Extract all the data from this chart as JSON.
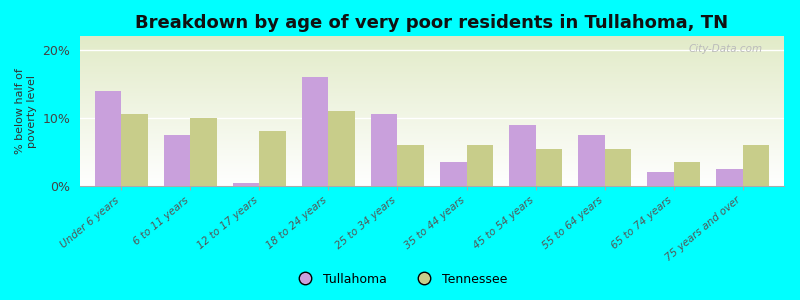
{
  "title": "Breakdown by age of very poor residents in Tullahoma, TN",
  "categories": [
    "Under 6 years",
    "6 to 11 years",
    "12 to 17 years",
    "18 to 24 years",
    "25 to 34 years",
    "35 to 44 years",
    "45 to 54 years",
    "55 to 64 years",
    "65 to 74 years",
    "75 years and over"
  ],
  "tullahoma": [
    14.0,
    7.5,
    0.5,
    16.0,
    10.5,
    3.5,
    9.0,
    7.5,
    2.0,
    2.5
  ],
  "tennessee": [
    10.5,
    10.0,
    8.0,
    11.0,
    6.0,
    6.0,
    5.5,
    5.5,
    3.5,
    6.0
  ],
  "tullahoma_color": "#c9a0dc",
  "tennessee_color": "#c8cd8a",
  "background_color": "#00ffff",
  "ylabel": "% below half of\npoverty level",
  "ylim": [
    0,
    22
  ],
  "yticks": [
    0,
    10,
    20
  ],
  "ytick_labels": [
    "0%",
    "10%",
    "20%"
  ],
  "bar_width": 0.38,
  "title_fontsize": 13,
  "legend_labels": [
    "Tullahoma",
    "Tennessee"
  ],
  "watermark": "City-Data.com"
}
